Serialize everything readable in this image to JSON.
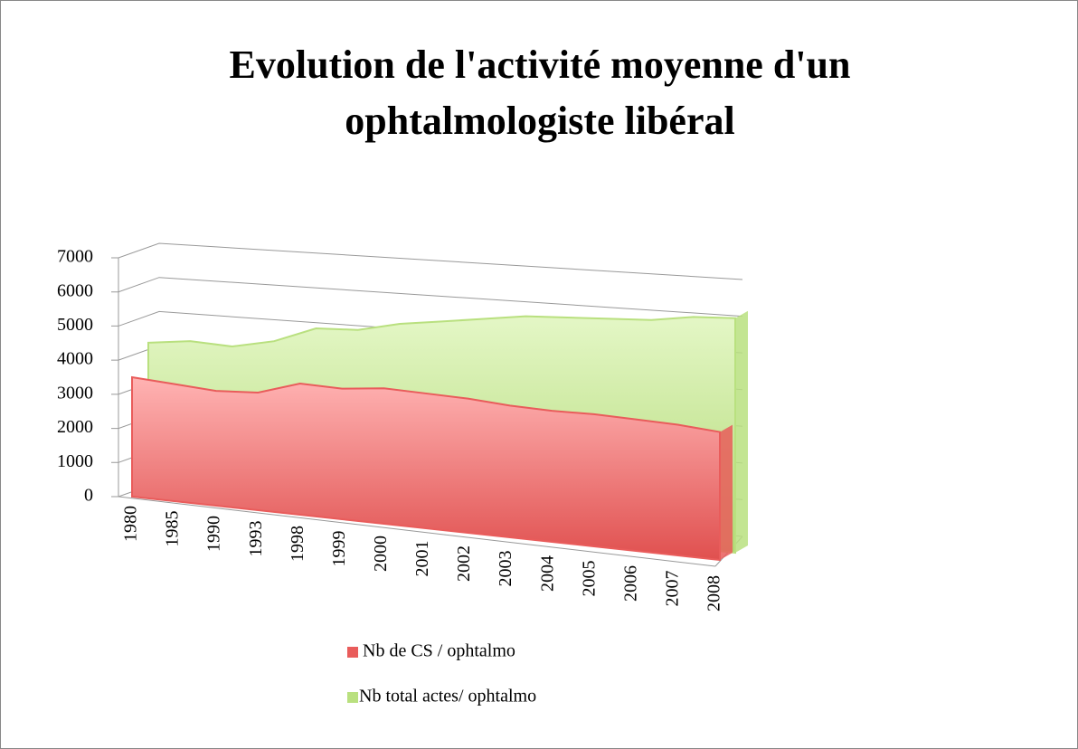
{
  "chart_data": {
    "type": "area3d",
    "title": "Evolution de l'activité moyenne d'un ophtalmologiste libéral",
    "categories": [
      "1980",
      "1985",
      "1990",
      "1993",
      "1998",
      "1999",
      "2000",
      "2001",
      "2002",
      "2003",
      "2004",
      "2005",
      "2006",
      "2007",
      "2008"
    ],
    "series": [
      {
        "name": "Nb de CS / ophtalmo",
        "color": "#e95c5b",
        "values": [
          3500,
          3400,
          3300,
          3350,
          3700,
          3650,
          3750,
          3700,
          3650,
          3550,
          3500,
          3500,
          3450,
          3400,
          3300
        ]
      },
      {
        "name": "Nb total actes/ ophtalmo",
        "color": "#b9e07f",
        "values": [
          4300,
          4400,
          4300,
          4500,
          4900,
          4900,
          5100,
          5200,
          5300,
          5400,
          5400,
          5400,
          5400,
          5500,
          5500
        ]
      }
    ],
    "ylim": [
      0,
      7000
    ],
    "yticks": [
      0,
      1000,
      2000,
      3000,
      4000,
      5000,
      6000,
      7000
    ],
    "grid": true
  }
}
